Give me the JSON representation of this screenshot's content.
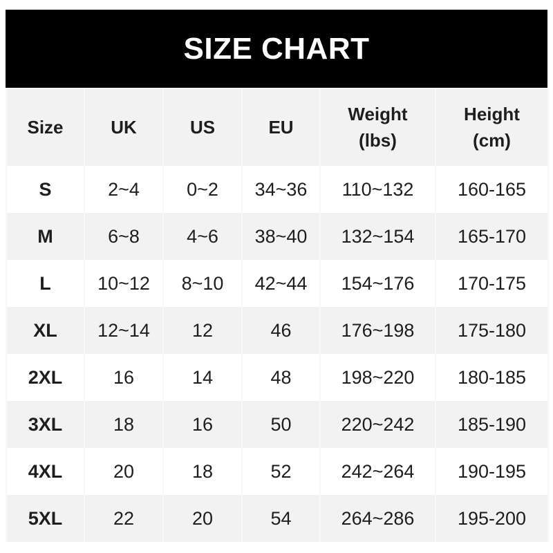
{
  "title": "SIZE CHART",
  "headers": [
    "Size",
    "UK",
    "US",
    "EU",
    "Weight\n(lbs)",
    "Height\n(cm)"
  ],
  "header_lines": [
    [
      "Size"
    ],
    [
      "UK"
    ],
    [
      "US"
    ],
    [
      "EU"
    ],
    [
      "Weight",
      "(lbs)"
    ],
    [
      "Height",
      "(cm)"
    ]
  ],
  "rows": [
    [
      "S",
      "2~4",
      "0~2",
      "34~36",
      "110~132",
      "160-165"
    ],
    [
      "M",
      "6~8",
      "4~6",
      "38~40",
      "132~154",
      "165-170"
    ],
    [
      "L",
      "10~12",
      "8~10",
      "42~44",
      "154~176",
      "170-175"
    ],
    [
      "XL",
      "12~14",
      "12",
      "46",
      "176~198",
      "175-180"
    ],
    [
      "2XL",
      "16",
      "14",
      "48",
      "198~220",
      "180-185"
    ],
    [
      "3XL",
      "18",
      "16",
      "50",
      "220~242",
      "185-190"
    ],
    [
      "4XL",
      "20",
      "18",
      "52",
      "242~264",
      "190-195"
    ],
    [
      "5XL",
      "22",
      "20",
      "54",
      "264~286",
      "195-200"
    ]
  ],
  "colors": {
    "title_bg": "#000000",
    "title_text": "#ffffff",
    "alt_row": "#f2f2f2",
    "text": "#1e1e1e"
  }
}
